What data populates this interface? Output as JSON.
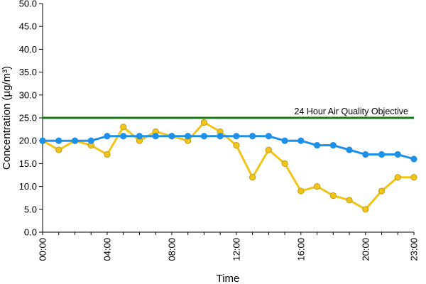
{
  "chart_data": {
    "type": "line",
    "title": "",
    "xlabel": "Time",
    "ylabel": "Concentration (µg/m³)",
    "ylim": [
      0,
      50
    ],
    "y_ticks": [
      "0.0",
      "5.0",
      "10.0",
      "15.0",
      "20.0",
      "25.0",
      "30.0",
      "35.0",
      "40.0",
      "45.0",
      "50.0"
    ],
    "x": [
      "00:00",
      "01:00",
      "02:00",
      "03:00",
      "04:00",
      "05:00",
      "06:00",
      "07:00",
      "08:00",
      "09:00",
      "10:00",
      "11:00",
      "12:00",
      "13:00",
      "14:00",
      "15:00",
      "16:00",
      "17:00",
      "18:00",
      "19:00",
      "20:00",
      "21:00",
      "22:00",
      "23:00"
    ],
    "x_tick_labels": [
      "00:00",
      "04:00",
      "08:00",
      "12:00",
      "16:00",
      "20:00",
      "23:00"
    ],
    "grid": false,
    "objective": {
      "label": "24 Hour Air Quality Objective",
      "value": 25,
      "color": "#1a7a1a"
    },
    "series": [
      {
        "color": "#f0c419",
        "marker": "circle",
        "values": [
          20,
          18,
          20,
          19,
          17,
          23,
          20,
          22,
          21,
          20,
          24,
          22,
          19,
          12,
          18,
          15,
          9,
          10,
          8,
          7,
          5,
          9,
          12,
          12
        ]
      },
      {
        "color": "#1e90e8",
        "marker": "circle",
        "values": [
          20,
          20,
          20,
          20,
          21,
          21,
          21,
          21,
          21,
          21,
          21,
          21,
          21,
          21,
          21,
          20,
          20,
          19,
          19,
          18,
          17,
          17,
          17,
          16
        ]
      }
    ]
  }
}
